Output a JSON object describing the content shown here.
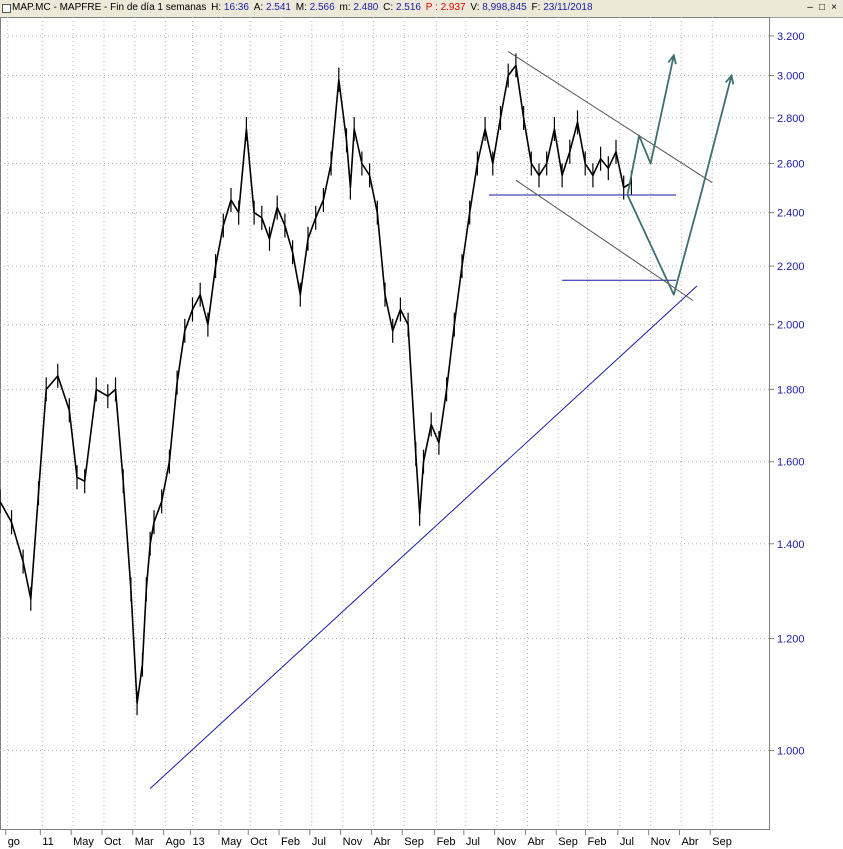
{
  "header": {
    "symbol": "MAP.MC - MAPFRE - Fin de día 1 semanas",
    "h_label": "H:",
    "h_value": "16:36",
    "a_label": "A:",
    "a_value": "2.541",
    "m_label": "M:",
    "m_value": "2.566",
    "mm_label": "m:",
    "mm_value": "2.480",
    "c_label": "C:",
    "c_value": "2.516",
    "p_label": "P :",
    "p_value": "2.937",
    "v_label": "V:",
    "v_value": "8,998,845",
    "f_label": "F:",
    "f_value": "23/11/2018"
  },
  "window_controls": {
    "minimize": "‒",
    "maximize": "□",
    "close": "×"
  },
  "colors": {
    "price": "#000000",
    "trendline": "#1a1aa6",
    "channel": "#555555",
    "arrow": "#3d7070",
    "axis_text": "#1a1aa6",
    "grid": "#b0b0b0"
  },
  "chart_data": {
    "type": "line",
    "title": "",
    "xlabel": "",
    "ylabel": "",
    "y_scale": "log",
    "ylim": [
      0.88,
      3.3
    ],
    "y_ticks": [
      "3.200",
      "3.000",
      "2.800",
      "2.600",
      "2.400",
      "2.200",
      "2.000",
      "1.800",
      "1.600",
      "1.400",
      "1.200",
      "1.000"
    ],
    "x_ticks": [
      "go",
      "11",
      "May",
      "Oct",
      "Mar",
      "Ago",
      "13",
      "May",
      "Oct",
      "Feb",
      "Jul",
      "Nov",
      "Abr",
      "Sep",
      "Feb",
      "Jul",
      "Nov",
      "Abr",
      "Sep",
      "Feb",
      "Jul",
      "Nov",
      "Abr",
      "Sep"
    ],
    "x_range": [
      0,
      100
    ],
    "x_tick_positions": [
      1,
      5.5,
      9.5,
      13.5,
      17.5,
      21.5,
      25,
      28.7,
      32.5,
      36.5,
      40.5,
      44.5,
      48.5,
      52.5,
      56.7,
      60.5,
      64.5,
      68.5,
      72.5,
      76.3,
      80.5,
      84.5,
      88.5,
      92.5
    ],
    "grid": true,
    "legend": "none",
    "series": [
      {
        "style": "price",
        "x": [
          0,
          1.5,
          3,
          4,
          5,
          6,
          7.5,
          9,
          10,
          11,
          12.5,
          14,
          15,
          16,
          17,
          17.8,
          18.5,
          19,
          19.5,
          20,
          21,
          22,
          23,
          24,
          25,
          26,
          27,
          28,
          29,
          30,
          31,
          32,
          33,
          34,
          35,
          36,
          37,
          38,
          39,
          40,
          41,
          42,
          43,
          44,
          45,
          45.5,
          46,
          47,
          48,
          49,
          50,
          51,
          52,
          53,
          54,
          54.5,
          55,
          56,
          57,
          58,
          59,
          60,
          61,
          62,
          63,
          64,
          65,
          66,
          67,
          68,
          69,
          70,
          71,
          72,
          73,
          74,
          75,
          76,
          77,
          78,
          79,
          80,
          81,
          82
        ],
        "y": [
          1.5,
          1.45,
          1.36,
          1.28,
          1.52,
          1.8,
          1.84,
          1.74,
          1.56,
          1.55,
          1.8,
          1.78,
          1.8,
          1.55,
          1.3,
          1.08,
          1.15,
          1.3,
          1.4,
          1.45,
          1.5,
          1.6,
          1.82,
          1.98,
          2.05,
          2.1,
          2.0,
          2.2,
          2.35,
          2.45,
          2.4,
          2.75,
          2.4,
          2.38,
          2.3,
          2.42,
          2.35,
          2.25,
          2.1,
          2.3,
          2.38,
          2.45,
          2.6,
          2.98,
          2.7,
          2.5,
          2.75,
          2.6,
          2.55,
          2.4,
          2.1,
          1.98,
          2.05,
          2.0,
          1.62,
          1.47,
          1.6,
          1.7,
          1.65,
          1.8,
          2.0,
          2.2,
          2.4,
          2.6,
          2.75,
          2.6,
          2.8,
          3.0,
          3.05,
          2.8,
          2.6,
          2.55,
          2.6,
          2.75,
          2.55,
          2.65,
          2.78,
          2.6,
          2.55,
          2.62,
          2.58,
          2.65,
          2.5,
          2.52
        ]
      },
      {
        "style": "trendline",
        "x": [
          19.5,
          90.5
        ],
        "y": [
          0.94,
          2.13
        ]
      },
      {
        "style": "trendline",
        "x": [
          63.5,
          87.8
        ],
        "y": [
          2.47,
          2.47
        ]
      },
      {
        "style": "trendline",
        "x": [
          73,
          87.8
        ],
        "y": [
          2.15,
          2.15
        ]
      },
      {
        "style": "channel",
        "x": [
          66,
          92.5
        ],
        "y": [
          3.12,
          2.52
        ]
      },
      {
        "style": "channel",
        "x": [
          67,
          90
        ],
        "y": [
          2.53,
          2.08
        ]
      },
      {
        "style": "arrow",
        "x": [
          81.5,
          87.5,
          91,
          95
        ],
        "y": [
          2.47,
          2.1,
          2.47,
          3.0
        ]
      },
      {
        "style": "arrow",
        "x": [
          81.5,
          83,
          84.5,
          87.5
        ],
        "y": [
          2.47,
          2.72,
          2.6,
          3.1
        ]
      }
    ]
  }
}
